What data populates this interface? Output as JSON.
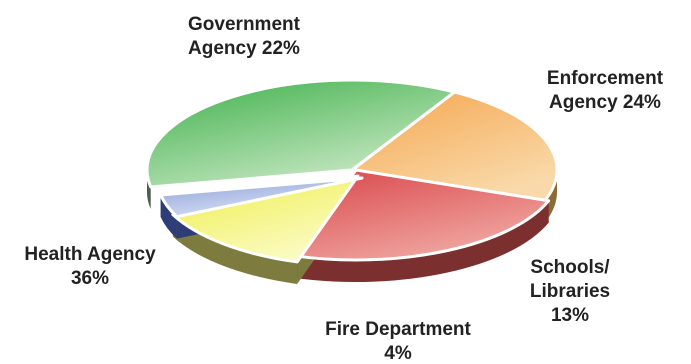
{
  "chart_data": {
    "type": "pie",
    "style": "3d-exploded",
    "slices": [
      {
        "key": "government",
        "lines": [
          "Government",
          "Agency 22%"
        ],
        "value": 22,
        "top": "#f5a64f",
        "top_light": "#f9d9a9",
        "side": "#8c6a35"
      },
      {
        "key": "enforcement",
        "lines": [
          "Enforcement",
          "Agency 24%"
        ],
        "value": 24,
        "top": "#d9464a",
        "top_light": "#f0a8a2",
        "side": "#7b2f2f"
      },
      {
        "key": "schools",
        "lines": [
          "Schools/",
          "Libraries",
          "13%"
        ],
        "value": 13,
        "top": "#eeee4a",
        "top_light": "#fbfbc4",
        "side": "#7d7b3e"
      },
      {
        "key": "fire",
        "lines": [
          "Fire Department",
          "4%"
        ],
        "value": 4,
        "top": "#8a9ed8",
        "top_light": "#dfe6f6",
        "side": "#2e3d78"
      },
      {
        "key": "health",
        "lines": [
          "Health Agency",
          "36%"
        ],
        "value": 36,
        "top": "#3db049",
        "top_light": "#c9e8c5",
        "side": "#4a5e4c"
      }
    ]
  }
}
